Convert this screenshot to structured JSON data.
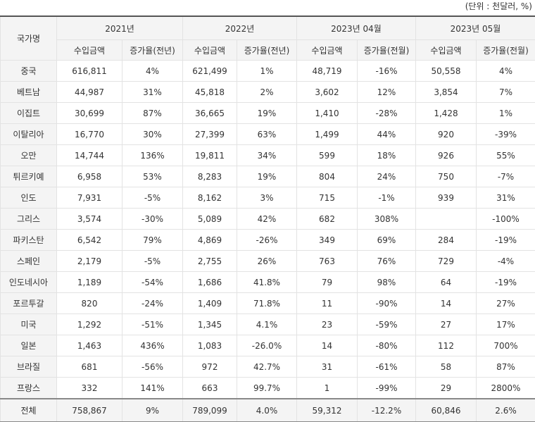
{
  "unit_note": "(단위 : 천달러, %)",
  "header": {
    "country": "국가명",
    "periods": [
      "2021년",
      "2022년",
      "2023년 04월",
      "2023년 05월"
    ],
    "sub": [
      "수입금액",
      "증가율(전년)",
      "수입금액",
      "증가율(전년)",
      "수입금액",
      "증가율(전월)",
      "수입금액",
      "증가율(전월)"
    ]
  },
  "rows": [
    {
      "country": "중국",
      "v": [
        "616,811",
        "4%",
        "621,499",
        "1%",
        "48,719",
        "-16%",
        "50,558",
        "4%"
      ]
    },
    {
      "country": "베트남",
      "v": [
        "44,987",
        "31%",
        "45,818",
        "2%",
        "3,602",
        "12%",
        "3,854",
        "7%"
      ]
    },
    {
      "country": "이집트",
      "v": [
        "30,699",
        "87%",
        "36,665",
        "19%",
        "1,410",
        "-28%",
        "1,428",
        "1%"
      ]
    },
    {
      "country": "이탈리아",
      "v": [
        "16,770",
        "30%",
        "27,399",
        "63%",
        "1,499",
        "44%",
        "920",
        "-39%"
      ]
    },
    {
      "country": "오만",
      "v": [
        "14,744",
        "136%",
        "19,811",
        "34%",
        "599",
        "18%",
        "926",
        "55%"
      ]
    },
    {
      "country": "튀르키예",
      "v": [
        "6,958",
        "53%",
        "8,283",
        "19%",
        "804",
        "24%",
        "750",
        "-7%"
      ]
    },
    {
      "country": "인도",
      "v": [
        "7,931",
        "-5%",
        "8,162",
        "3%",
        "715",
        "-1%",
        "939",
        "31%"
      ]
    },
    {
      "country": "그리스",
      "v": [
        "3,574",
        "-30%",
        "5,089",
        "42%",
        "682",
        "308%",
        "",
        "-100%"
      ]
    },
    {
      "country": "파키스탄",
      "v": [
        "6,542",
        "79%",
        "4,869",
        "-26%",
        "349",
        "69%",
        "284",
        "-19%"
      ]
    },
    {
      "country": "스페인",
      "v": [
        "2,179",
        "-5%",
        "2,755",
        "26%",
        "763",
        "76%",
        "729",
        "-4%"
      ]
    },
    {
      "country": "인도네시아",
      "v": [
        "1,189",
        "-54%",
        "1,686",
        "41.8%",
        "79",
        "98%",
        "64",
        "-19%"
      ]
    },
    {
      "country": "포르투갈",
      "v": [
        "820",
        "-24%",
        "1,409",
        "71.8%",
        "11",
        "-90%",
        "14",
        "27%"
      ]
    },
    {
      "country": "미국",
      "v": [
        "1,292",
        "-51%",
        "1,345",
        "4.1%",
        "23",
        "-59%",
        "27",
        "17%"
      ]
    },
    {
      "country": "일본",
      "v": [
        "1,463",
        "436%",
        "1,083",
        "-26.0%",
        "14",
        "-80%",
        "112",
        "700%"
      ]
    },
    {
      "country": "브라질",
      "v": [
        "681",
        "-56%",
        "972",
        "42.7%",
        "31",
        "-61%",
        "58",
        "87%"
      ]
    },
    {
      "country": "프랑스",
      "v": [
        "332",
        "141%",
        "663",
        "99.7%",
        "1",
        "-99%",
        "29",
        "2800%"
      ]
    }
  ],
  "total": {
    "country": "전체",
    "v": [
      "758,867",
      "9%",
      "789,099",
      "4.0%",
      "59,312",
      "-12.2%",
      "60,846",
      "2.6%"
    ]
  }
}
